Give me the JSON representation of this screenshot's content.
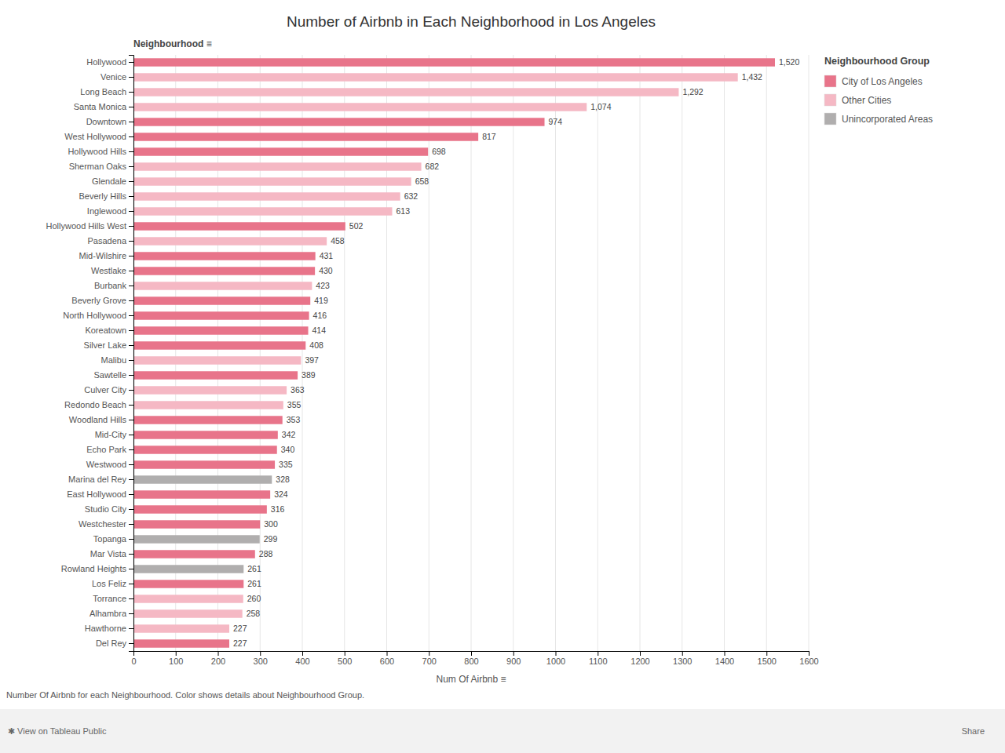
{
  "chart_data": {
    "type": "bar",
    "orientation": "horizontal",
    "title": "Number of Airbnb in Each Neighborhood in Los Angeles",
    "xlabel": "Num Of Airbnb  ≡",
    "ylabel": "Neighbourhood  ≡",
    "annotations": [
      "Number Of Airbnb for each Neighbourhood.  Color shows details about Neighbourhood Group.",
      "✱  View on Tableau Public",
      "Share"
    ],
    "categories": [
      "Hollywood",
      "Venice",
      "Long Beach",
      "Santa Monica",
      "Downtown",
      "West Hollywood",
      "Hollywood Hills",
      "Sherman Oaks",
      "Glendale",
      "Beverly Hills",
      "Inglewood",
      "Hollywood Hills West",
      "Pasadena",
      "Mid-Wilshire",
      "Westlake",
      "Burbank",
      "Beverly Grove",
      "North Hollywood",
      "Koreatown",
      "Silver Lake",
      "Malibu",
      "Sawtelle",
      "Culver City",
      "Redondo Beach",
      "Woodland Hills",
      "Mid-City",
      "Echo Park",
      "Westwood",
      "Marina del Rey",
      "East Hollywood",
      "Studio City",
      "Westchester",
      "Topanga",
      "Mar Vista",
      "Rowland Heights",
      "Los Feliz",
      "Torrance",
      "Alhambra",
      "Hawthorne",
      "Del Rey"
    ],
    "values": [
      1520,
      1432,
      1292,
      1074,
      974,
      817,
      698,
      682,
      658,
      632,
      613,
      502,
      458,
      431,
      430,
      423,
      419,
      416,
      414,
      408,
      397,
      389,
      363,
      355,
      353,
      342,
      340,
      335,
      328,
      324,
      316,
      300,
      299,
      288,
      261,
      261,
      260,
      258,
      227,
      227
    ],
    "value_labels": [
      "1,520",
      "1,432",
      "1,292",
      "1,074",
      "974",
      "817",
      "698",
      "682",
      "658",
      "632",
      "613",
      "502",
      "458",
      "431",
      "430",
      "423",
      "419",
      "416",
      "414",
      "408",
      "397",
      "389",
      "363",
      "355",
      "353",
      "342",
      "340",
      "335",
      "328",
      "324",
      "316",
      "300",
      "299",
      "288",
      "261",
      "261",
      "260",
      "258",
      "227",
      "227"
    ],
    "colors": [
      "#e8748a",
      "#f5b8c4",
      "#f5b8c4",
      "#f5b8c4",
      "#e8748a",
      "#e8748a",
      "#e8748a",
      "#f5b8c4",
      "#f5b8c4",
      "#f5b8c4",
      "#f5b8c4",
      "#e8748a",
      "#f5b8c4",
      "#e8748a",
      "#e8748a",
      "#f5b8c4",
      "#e8748a",
      "#e8748a",
      "#e8748a",
      "#e8748a",
      "#f5b8c4",
      "#e8748a",
      "#f5b8c4",
      "#f5b8c4",
      "#e8748a",
      "#e8748a",
      "#e8748a",
      "#e8748a",
      "#b0aeae",
      "#e8748a",
      "#e8748a",
      "#e8748a",
      "#b0aeae",
      "#e8748a",
      "#b0aeae",
      "#e8748a",
      "#f5b8c4",
      "#f5b8c4",
      "#f5b8c4",
      "#e8748a"
    ],
    "xlim": [
      0,
      1600
    ],
    "xticks": [
      0,
      100,
      200,
      300,
      400,
      500,
      600,
      700,
      800,
      900,
      1000,
      1100,
      1200,
      1300,
      1400,
      1500,
      1600
    ],
    "grid": true,
    "data_labels": true,
    "legend": "upper right",
    "legend_title": "Neighbourhood Group",
    "legend_entries": [
      {
        "name": "City of Los Angeles",
        "color": "#e8748a"
      },
      {
        "name": "Other Cities",
        "color": "#f5b8c4"
      },
      {
        "name": "Unincorporated Areas",
        "color": "#b0aeae"
      }
    ]
  }
}
